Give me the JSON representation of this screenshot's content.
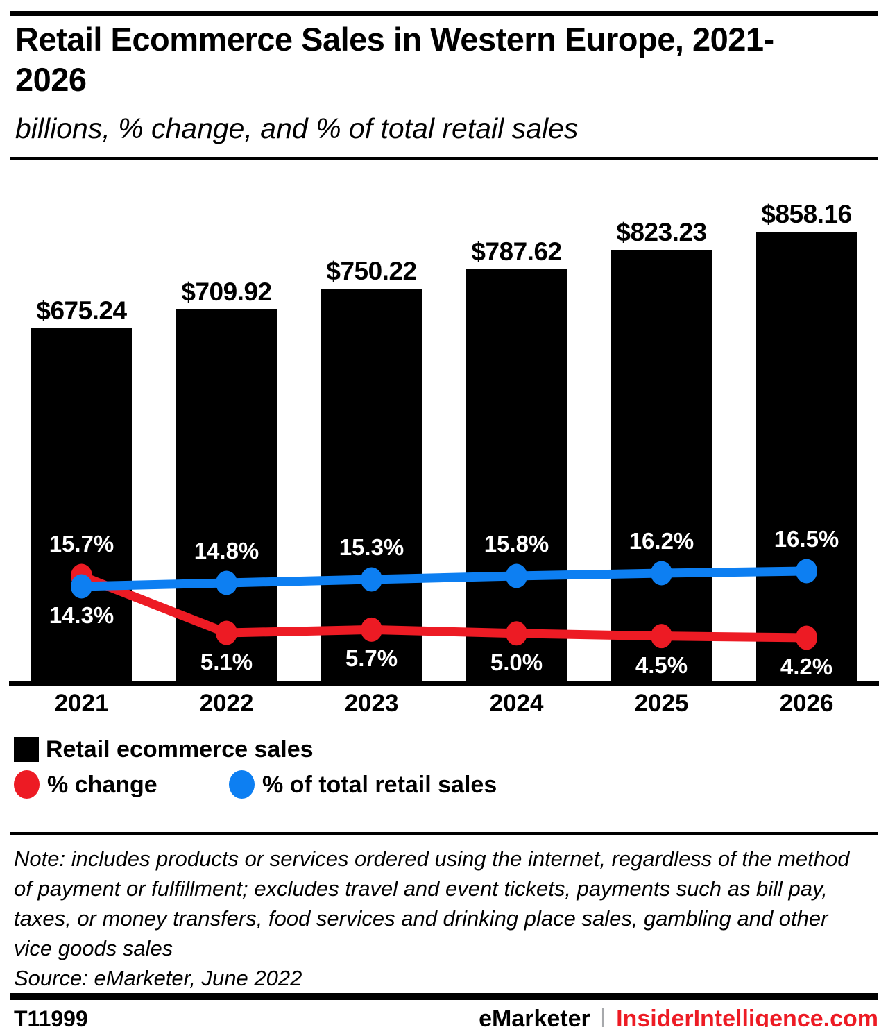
{
  "title": "Retail Ecommerce Sales in Western Europe, 2021-2026",
  "subtitle": "billions, % change, and % of total retail sales",
  "colors": {
    "accent_red": "#ed1b24",
    "line_blue": "#0d7ff2",
    "bar_black": "#000000",
    "divider_gray": "#a7a9ac",
    "label_white": "#ffffff"
  },
  "chart_data": {
    "type": "bar",
    "subtype": "bar with two line overlays on secondary percent axes",
    "categories": [
      "2021",
      "2022",
      "2023",
      "2024",
      "2025",
      "2026"
    ],
    "series": [
      {
        "name": "Retail ecommerce sales",
        "unit": "billions USD",
        "style": "bar",
        "color": "#000000",
        "values": [
          675.24,
          709.92,
          750.22,
          787.62,
          823.23,
          858.16
        ],
        "labels": [
          "$675.24",
          "$709.92",
          "$750.22",
          "$787.62",
          "$823.23",
          "$858.16"
        ]
      },
      {
        "name": "% change",
        "unit": "percent",
        "style": "line",
        "color": "#ed1b24",
        "values": [
          15.7,
          5.1,
          5.7,
          5.0,
          4.5,
          4.2
        ],
        "labels": [
          "15.7%",
          "5.1%",
          "5.7%",
          "5.0%",
          "4.5%",
          "4.2%"
        ]
      },
      {
        "name": "% of total retail sales",
        "unit": "percent",
        "style": "line",
        "color": "#0d7ff2",
        "values": [
          14.3,
          14.8,
          15.3,
          15.8,
          16.2,
          16.5
        ],
        "labels": [
          "14.3%",
          "14.8%",
          "15.3%",
          "15.8%",
          "16.2%",
          "16.5%"
        ]
      }
    ],
    "xlabel": "",
    "ylabel": "",
    "grid": false,
    "legend_position": "below"
  },
  "legend": {
    "bars_label": "Retail ecommerce sales",
    "red_label": "% change",
    "blue_label": "% of total retail sales"
  },
  "note": "Note: includes products or services ordered using the internet, regardless of the method of payment or fulfillment; excludes travel and event tickets, payments such as bill pay, taxes, or money transfers, food services and drinking place sales, gambling and other vice goods sales",
  "source": "Source: eMarketer, June 2022",
  "footer": {
    "chart_id": "T11999",
    "brand": "eMarketer",
    "divider": "|",
    "site": "InsiderIntelligence.com"
  }
}
